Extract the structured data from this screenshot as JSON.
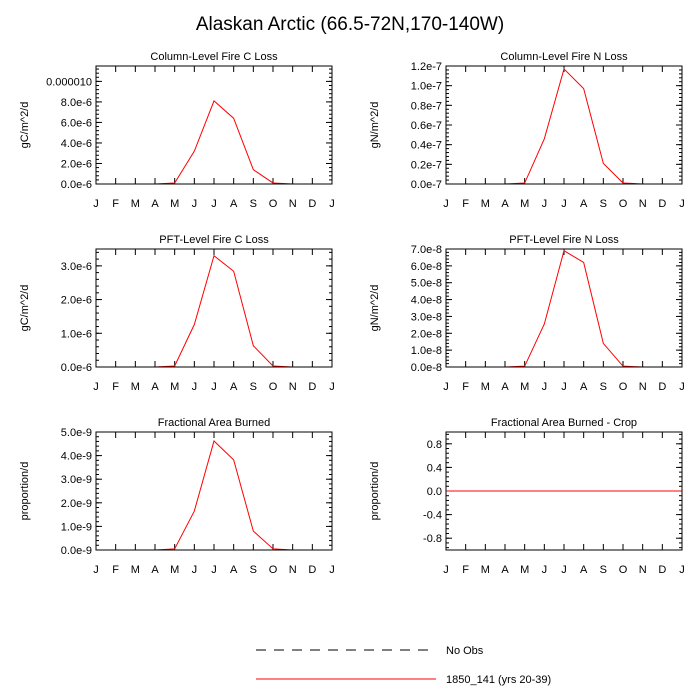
{
  "title": "Alaskan Arctic (66.5-72N,170-140W)",
  "legend": {
    "items": [
      {
        "label": "No Obs",
        "style": "dashed",
        "color": "#000000"
      },
      {
        "label": "1850_141 (yrs 20-39)",
        "style": "solid",
        "color": "#ff0000"
      }
    ]
  },
  "chart_data": [
    {
      "type": "line",
      "title": "Column-Level Fire C Loss",
      "ylabel": "gC/m^2/d",
      "xlabel": "",
      "categories": [
        "J",
        "F",
        "M",
        "A",
        "M",
        "J",
        "J",
        "A",
        "S",
        "O",
        "N",
        "D",
        "J"
      ],
      "ylim": [
        0,
        1.15e-05
      ],
      "yticks": [
        0,
        2e-06,
        4e-06,
        6e-06,
        8e-06,
        1e-05
      ],
      "yticklabels": [
        "0.0e-6",
        "2.0e-6",
        "4.0e-6",
        "6.0e-6",
        "8.0e-6",
        "0.000010"
      ],
      "series": [
        {
          "name": "1850_141 (yrs 20-39)",
          "color": "#ff0000",
          "values": [
            0,
            0,
            0,
            0,
            1e-07,
            3.2e-06,
            8.1e-06,
            6.4e-06,
            1.4e-06,
            1e-07,
            0,
            0,
            0
          ]
        }
      ]
    },
    {
      "type": "line",
      "title": "Column-Level Fire N Loss",
      "ylabel": "gN/m^2/d",
      "xlabel": "",
      "categories": [
        "J",
        "F",
        "M",
        "A",
        "M",
        "J",
        "J",
        "A",
        "S",
        "O",
        "N",
        "D",
        "J"
      ],
      "ylim": [
        0,
        1.2e-07
      ],
      "yticks": [
        0,
        2e-08,
        4e-08,
        6e-08,
        8e-08,
        1e-07,
        1.2e-07
      ],
      "yticklabels": [
        "0.0e-7",
        "0.2e-7",
        "0.4e-7",
        "0.6e-7",
        "0.8e-7",
        "1.0e-7",
        "1.2e-7"
      ],
      "series": [
        {
          "name": "1850_141 (yrs 20-39)",
          "color": "#ff0000",
          "values": [
            0,
            0,
            0,
            0,
            1e-09,
            4.6e-08,
            1.17e-07,
            9.7e-08,
            2.1e-08,
            1e-09,
            0,
            0,
            0
          ]
        }
      ]
    },
    {
      "type": "line",
      "title": "PFT-Level Fire C Loss",
      "ylabel": "gC/m^2/d",
      "xlabel": "",
      "categories": [
        "J",
        "F",
        "M",
        "A",
        "M",
        "J",
        "J",
        "A",
        "S",
        "O",
        "N",
        "D",
        "J"
      ],
      "ylim": [
        0,
        3.5e-06
      ],
      "yticks": [
        0,
        1e-06,
        2e-06,
        3e-06
      ],
      "yticklabels": [
        "0.0e-6",
        "1.0e-6",
        "2.0e-6",
        "3.0e-6"
      ],
      "series": [
        {
          "name": "1850_141 (yrs 20-39)",
          "color": "#ff0000",
          "values": [
            0,
            0,
            0,
            0,
            3e-08,
            1.26e-06,
            3.3e-06,
            2.84e-06,
            6.3e-07,
            3e-08,
            0,
            0,
            0
          ]
        }
      ]
    },
    {
      "type": "line",
      "title": "PFT-Level Fire N Loss",
      "ylabel": "gN/m^2/d",
      "xlabel": "",
      "categories": [
        "J",
        "F",
        "M",
        "A",
        "M",
        "J",
        "J",
        "A",
        "S",
        "O",
        "N",
        "D",
        "J"
      ],
      "ylim": [
        0,
        7e-08
      ],
      "yticks": [
        0,
        1e-08,
        2e-08,
        3e-08,
        4e-08,
        5e-08,
        6e-08,
        7e-08
      ],
      "yticklabels": [
        "0.0e-8",
        "1.0e-8",
        "2.0e-8",
        "3.0e-8",
        "4.0e-8",
        "5.0e-8",
        "6.0e-8",
        "7.0e-8"
      ],
      "series": [
        {
          "name": "1850_141 (yrs 20-39)",
          "color": "#ff0000",
          "values": [
            0,
            0,
            0,
            0,
            5e-10,
            2.55e-08,
            6.9e-08,
            6.2e-08,
            1.4e-08,
            5e-10,
            0,
            0,
            0
          ]
        }
      ]
    },
    {
      "type": "line",
      "title": "Fractional Area Burned",
      "ylabel": "proportion/d",
      "xlabel": "",
      "categories": [
        "J",
        "F",
        "M",
        "A",
        "M",
        "J",
        "J",
        "A",
        "S",
        "O",
        "N",
        "D",
        "J"
      ],
      "ylim": [
        0,
        5e-09
      ],
      "yticks": [
        0,
        1e-09,
        2e-09,
        3e-09,
        4e-09,
        5e-09
      ],
      "yticklabels": [
        "0.0e-9",
        "1.0e-9",
        "2.0e-9",
        "3.0e-9",
        "4.0e-9",
        "5.0e-9"
      ],
      "series": [
        {
          "name": "1850_141 (yrs 20-39)",
          "color": "#ff0000",
          "values": [
            0,
            0,
            0,
            0,
            5e-11,
            1.65e-09,
            4.62e-09,
            3.82e-09,
            8e-10,
            5e-11,
            0,
            0,
            0
          ]
        }
      ]
    },
    {
      "type": "line",
      "title": "Fractional Area Burned - Crop",
      "ylabel": "proportion/d",
      "xlabel": "",
      "categories": [
        "J",
        "F",
        "M",
        "A",
        "M",
        "J",
        "J",
        "A",
        "S",
        "O",
        "N",
        "D",
        "J"
      ],
      "ylim": [
        -1,
        1
      ],
      "yticks": [
        -0.8,
        -0.4,
        0,
        0.4,
        0.8
      ],
      "yticklabels": [
        "-0.8",
        "-0.4",
        "0.0",
        "0.4",
        "0.8"
      ],
      "series": [
        {
          "name": "1850_141 (yrs 20-39)",
          "color": "#ff0000",
          "values": [
            0,
            0,
            0,
            0,
            0,
            0,
            0,
            0,
            0,
            0,
            0,
            0,
            0
          ]
        }
      ]
    }
  ]
}
